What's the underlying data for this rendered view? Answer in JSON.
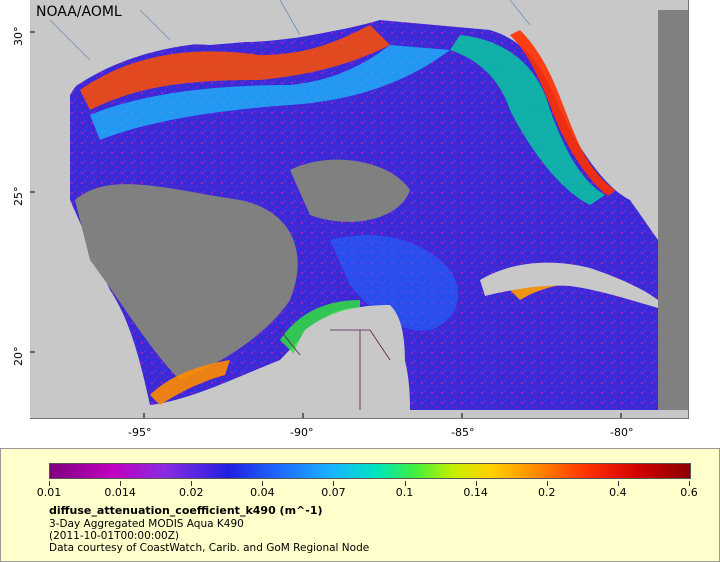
{
  "credit": "NOAA/AOML",
  "x_axis_labels": [
    "-95°",
    "-90°",
    "-85°",
    "-80°"
  ],
  "y_axis_labels": [
    "30°",
    "25°",
    "20°"
  ],
  "legend": {
    "ticks": [
      "0.01",
      "0.014",
      "0.02",
      "0.04",
      "0.07",
      "0.1",
      "0.14",
      "0.2",
      "0.4",
      "0.6"
    ],
    "title": "diffuse_attenuation_coefficient_k490 (m^-1)",
    "line1": "3-Day Aggregated MODIS Aqua K490",
    "line2": "(2011-10-01T00:00:00Z)",
    "line3": "Data courtesy of CoastWatch, Carib. and GoM Regional Node"
  },
  "colors": {
    "land": "#c8c8c8",
    "no_data": "#808080",
    "legend_bg": "#ffffcc"
  }
}
